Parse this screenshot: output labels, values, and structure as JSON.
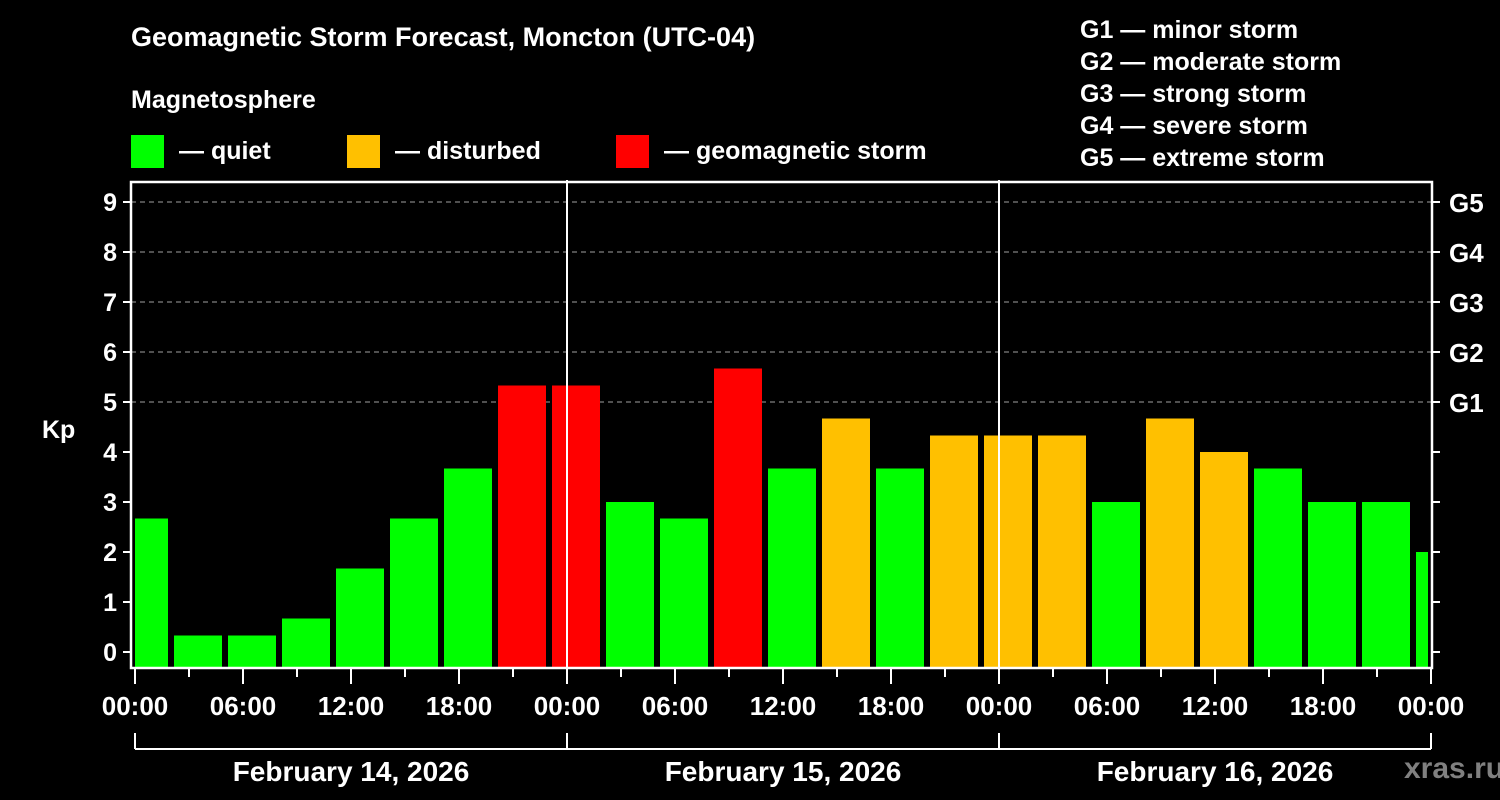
{
  "header": {
    "title": "Geomagnetic Storm Forecast, Moncton (UTC-04)",
    "subtitle": "Magnetosphere"
  },
  "legend": [
    {
      "label": "— quiet",
      "color": "#00ff00"
    },
    {
      "label": "— disturbed",
      "color": "#ffc000"
    },
    {
      "label": "— geomagnetic storm",
      "color": "#ff0000"
    }
  ],
  "g_scale": [
    "G1 — minor storm",
    "G2 — moderate storm",
    "G3 — strong storm",
    "G4 — severe storm",
    "G5 — extreme storm"
  ],
  "watermark": "xras.ru",
  "colors": {
    "background": "#000000",
    "quiet": "#00ff00",
    "disturbed": "#ffc000",
    "storm": "#ff0000",
    "axis": "#ffffff",
    "grid": "#808080",
    "watermark": "#808080"
  },
  "chart_data": {
    "type": "bar",
    "title": "Geomagnetic Storm Forecast, Moncton (UTC-04)",
    "xlabel": "",
    "ylabel": "Kp",
    "ylim": [
      0,
      9
    ],
    "yticks": [
      0,
      1,
      2,
      3,
      4,
      5,
      6,
      7,
      8,
      9
    ],
    "y2ticks": [
      {
        "kp": 5,
        "label": "G1"
      },
      {
        "kp": 6,
        "label": "G2"
      },
      {
        "kp": 7,
        "label": "G3"
      },
      {
        "kp": 8,
        "label": "G4"
      },
      {
        "kp": 9,
        "label": "G5"
      }
    ],
    "grid": {
      "y_dashed_from": 5,
      "y_dashed_to": 9
    },
    "xtick_labels": [
      "00:00",
      "06:00",
      "12:00",
      "18:00",
      "00:00",
      "06:00",
      "12:00",
      "18:00",
      "00:00",
      "06:00",
      "12:00",
      "18:00",
      "00:00"
    ],
    "days": [
      "February 14, 2026",
      "February 15, 2026",
      "February 16, 2026"
    ],
    "bar_interval_hours": 3,
    "bar_center_offset_hours": 0.5,
    "categories": [
      "Feb 14 00:30",
      "Feb 14 03:30",
      "Feb 14 06:30",
      "Feb 14 09:30",
      "Feb 14 12:30",
      "Feb 14 15:30",
      "Feb 14 18:30",
      "Feb 14 21:30",
      "Feb 15 00:30",
      "Feb 15 03:30",
      "Feb 15 06:30",
      "Feb 15 09:30",
      "Feb 15 12:30",
      "Feb 15 15:30",
      "Feb 15 18:30",
      "Feb 15 21:30",
      "Feb 16 00:30",
      "Feb 16 03:30",
      "Feb 16 06:30",
      "Feb 16 09:30",
      "Feb 16 12:30",
      "Feb 16 15:30",
      "Feb 16 18:30",
      "Feb 16 21:30",
      "Feb 17 00:30"
    ],
    "values": [
      2.67,
      0.33,
      0.33,
      0.67,
      1.67,
      2.67,
      3.67,
      5.33,
      5.33,
      3.0,
      2.67,
      5.67,
      3.67,
      4.67,
      3.67,
      4.33,
      4.33,
      4.33,
      3.0,
      4.67,
      4.0,
      3.67,
      3.0,
      3.0,
      2.0
    ],
    "status": [
      "quiet",
      "quiet",
      "quiet",
      "quiet",
      "quiet",
      "quiet",
      "quiet",
      "storm",
      "storm",
      "quiet",
      "quiet",
      "storm",
      "quiet",
      "disturbed",
      "quiet",
      "disturbed",
      "disturbed",
      "disturbed",
      "quiet",
      "disturbed",
      "disturbed",
      "quiet",
      "quiet",
      "quiet",
      "quiet"
    ],
    "legend_position": "top-left"
  }
}
